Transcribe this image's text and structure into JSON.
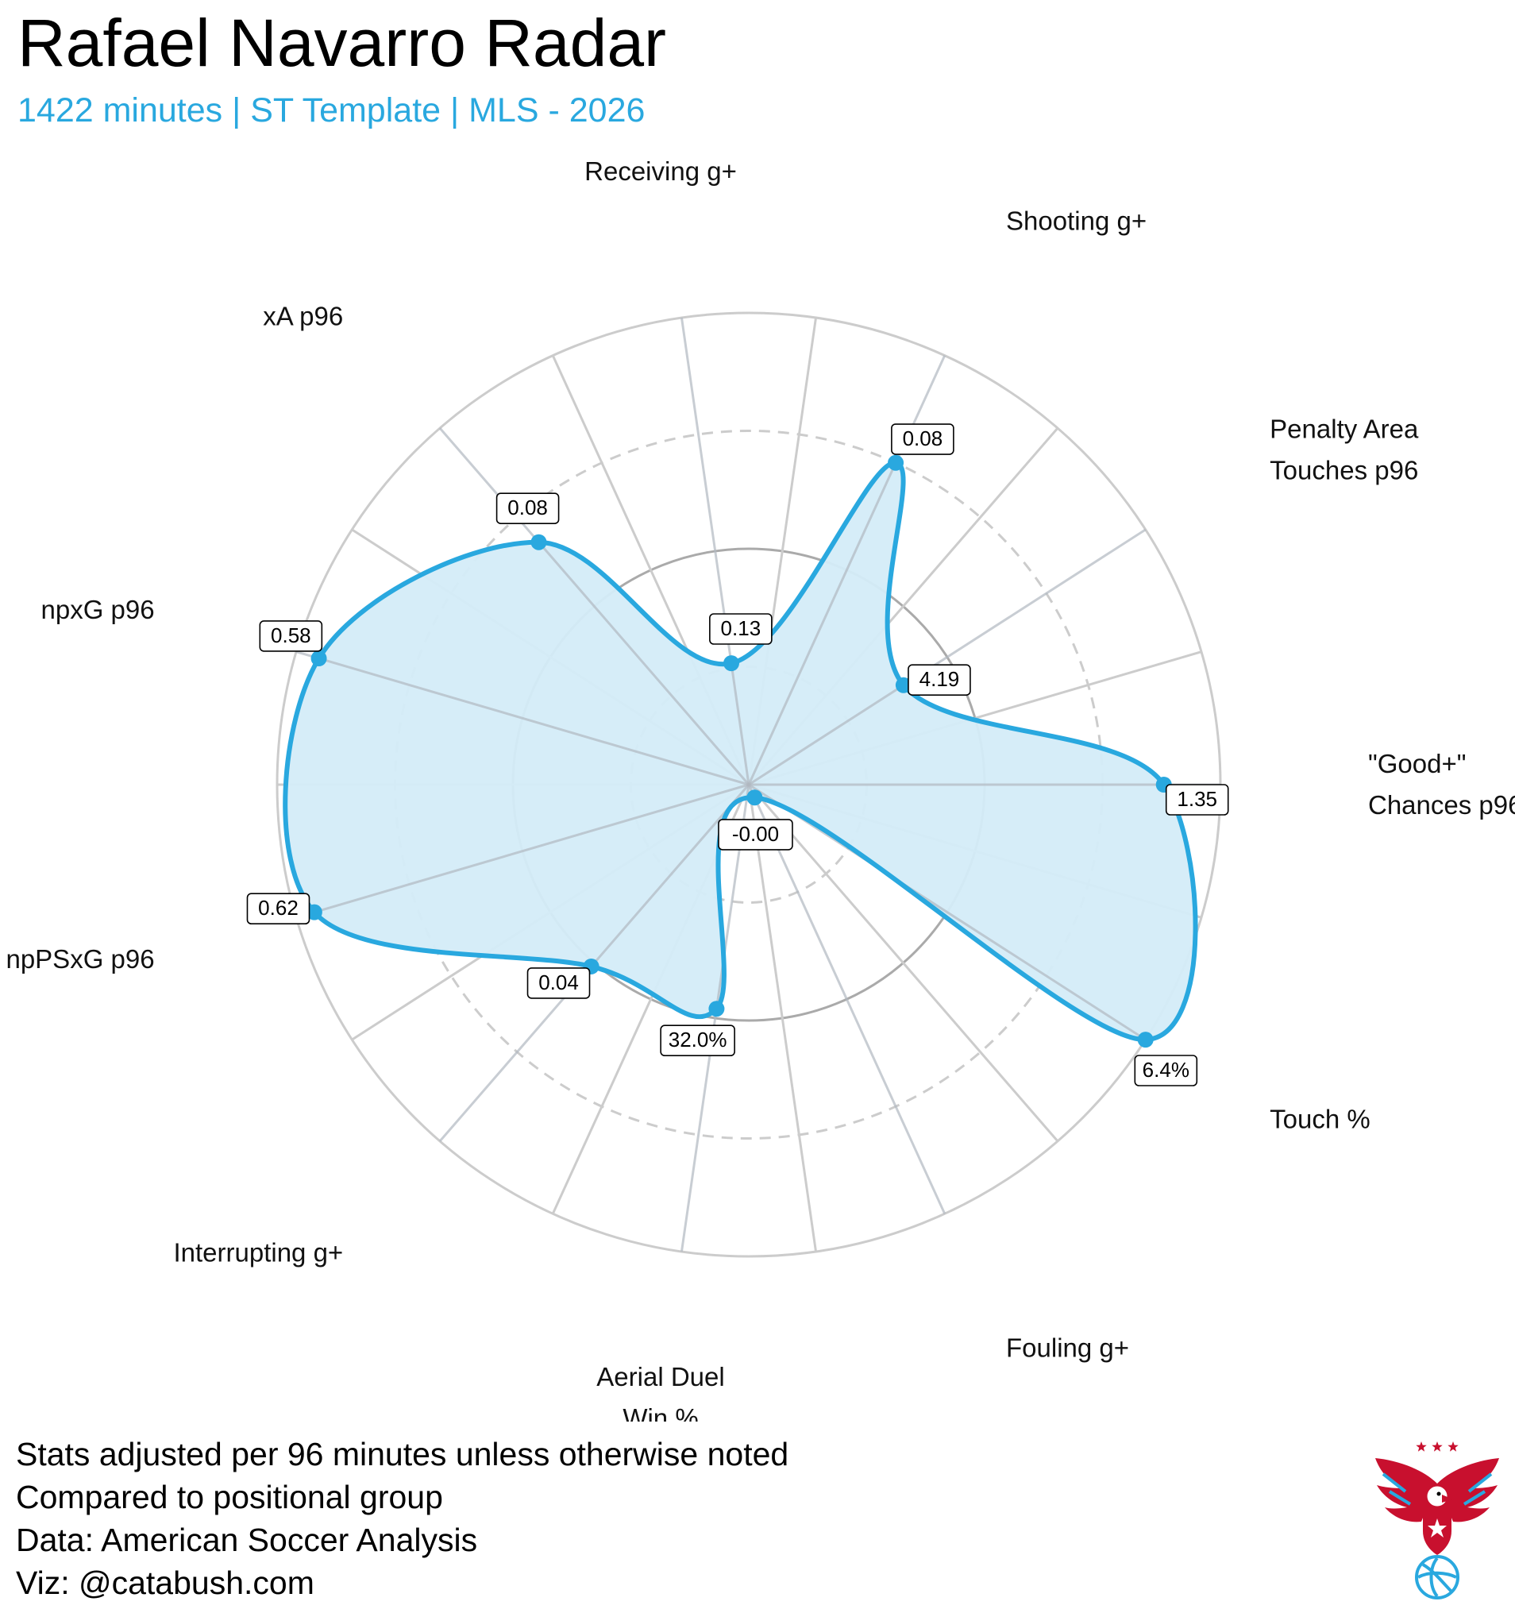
{
  "header": {
    "title": "Rafael Navarro Radar",
    "subtitle": "1422 minutes | ST Template | MLS - 2026"
  },
  "footer": {
    "line1": "Stats adjusted per 96 minutes unless otherwise noted",
    "line2": "Compared to positional group",
    "line3": "Data: American Soccer Analysis",
    "line4": "Viz: @catabush.com"
  },
  "colors": {
    "accent": "#29A8DF",
    "fill": "#D4ECF8",
    "grid_light": "#CCCCCC",
    "grid_mid": "#AAAAAA",
    "logo_red": "#C8102E",
    "logo_blue": "#29A8DF"
  },
  "logo": {
    "icon": "eagle-soccer-ball-logo"
  },
  "chart_data": {
    "type": "radar",
    "title": "Rafael Navarro Radar",
    "subtitle": "1422 minutes | ST Template | MLS - 2026",
    "scale": "percentile",
    "range": [
      0,
      100
    ],
    "rings": [
      {
        "value": 25,
        "style": "dashed"
      },
      {
        "value": 50,
        "style": "solid"
      },
      {
        "value": 75,
        "style": "dashed"
      },
      {
        "value": 100,
        "style": "solid"
      }
    ],
    "metrics": [
      {
        "name": "\"Good+\" Chances p96",
        "lines": [
          "\"Good+\"",
          "Chances p96"
        ],
        "value_label": "1.35",
        "percentile": 88
      },
      {
        "name": "Penalty Area Touches p96",
        "lines": [
          "Penalty Area",
          "Touches p96"
        ],
        "value_label": "4.19",
        "percentile": 39
      },
      {
        "name": "Shooting g+",
        "lines": [
          "Shooting g+"
        ],
        "value_label": "0.08",
        "percentile": 75
      },
      {
        "name": "Receiving g+",
        "lines": [
          "Receiving g+"
        ],
        "value_label": "0.13",
        "percentile": 26
      },
      {
        "name": "xA p96",
        "lines": [
          "xA p96"
        ],
        "value_label": "0.08",
        "percentile": 68
      },
      {
        "name": "npxG p96",
        "lines": [
          "npxG p96"
        ],
        "value_label": "0.58",
        "percentile": 95
      },
      {
        "name": "npPSxG p96",
        "lines": [
          "npPSxG p96"
        ],
        "value_label": "0.62",
        "percentile": 96
      },
      {
        "name": "Interrupting g+",
        "lines": [
          "Interrupting g+"
        ],
        "value_label": "0.04",
        "percentile": 51
      },
      {
        "name": "Aerial Duel Win %",
        "lines": [
          "Aerial Duel",
          "Win %"
        ],
        "value_label": "32.0%",
        "percentile": 48
      },
      {
        "name": "Fouling g+",
        "lines": [
          "Fouling g+"
        ],
        "value_label": "-0.00",
        "percentile": 3
      },
      {
        "name": "Touch %",
        "lines": [
          "Touch %"
        ],
        "value_label": "6.4%",
        "percentile": 100
      }
    ]
  }
}
